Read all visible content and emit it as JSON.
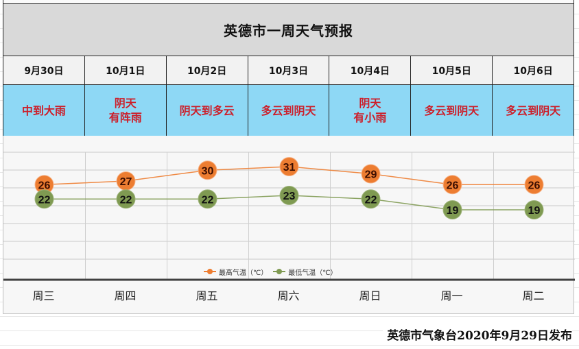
{
  "title": "英德市一周天气预报",
  "days": [
    {
      "date": "9月30日",
      "weather": "中到大雨",
      "weekday": "周三",
      "high": 26,
      "low": 22
    },
    {
      "date": "10月1日",
      "weather": "阴天\n有阵雨",
      "weekday": "周四",
      "high": 27,
      "low": 22
    },
    {
      "date": "10月2日",
      "weather": "阴天到多云",
      "weekday": "周五",
      "high": 30,
      "low": 22
    },
    {
      "date": "10月3日",
      "weather": "多云到阴天",
      "weekday": "周六",
      "high": 31,
      "low": 23
    },
    {
      "date": "10月4日",
      "weather": "阴天\n有小雨",
      "weekday": "周日",
      "high": 29,
      "low": 22
    },
    {
      "date": "10月5日",
      "weather": "多云到阴天",
      "weekday": "周一",
      "high": 26,
      "low": 19
    },
    {
      "date": "10月6日",
      "weather": "多云到阴天",
      "weekday": "周二",
      "high": 26,
      "low": 19
    }
  ],
  "legend": {
    "high_label": "最高气温（℃）",
    "low_label": "最低气温（℃）"
  },
  "colors": {
    "title_bg": "#d9d9d9",
    "date_bg": "#f2f2f2",
    "weather_bg": "#8ed8f5",
    "weather_text": "#cc1f2a",
    "high_series": "#ed7d31",
    "low_series": "#7f9a52"
  },
  "footer": "英德市气象台2020年9月29日发布",
  "chart_data": {
    "type": "line",
    "title": "英德市一周天气预报",
    "categories": [
      "周三",
      "周四",
      "周五",
      "周六",
      "周日",
      "周一",
      "周二"
    ],
    "x_dates": [
      "9月30日",
      "10月1日",
      "10月2日",
      "10月3日",
      "10月4日",
      "10月5日",
      "10月6日"
    ],
    "series": [
      {
        "name": "最高气温（℃）",
        "color": "#ed7d31",
        "values": [
          26,
          27,
          30,
          31,
          29,
          26,
          26
        ]
      },
      {
        "name": "最低气温（℃）",
        "color": "#7f9a52",
        "values": [
          22,
          22,
          22,
          23,
          22,
          19,
          19
        ]
      }
    ],
    "xlabel": "",
    "ylabel": "",
    "data_labels": true,
    "grid": true,
    "legend_position": "bottom"
  }
}
